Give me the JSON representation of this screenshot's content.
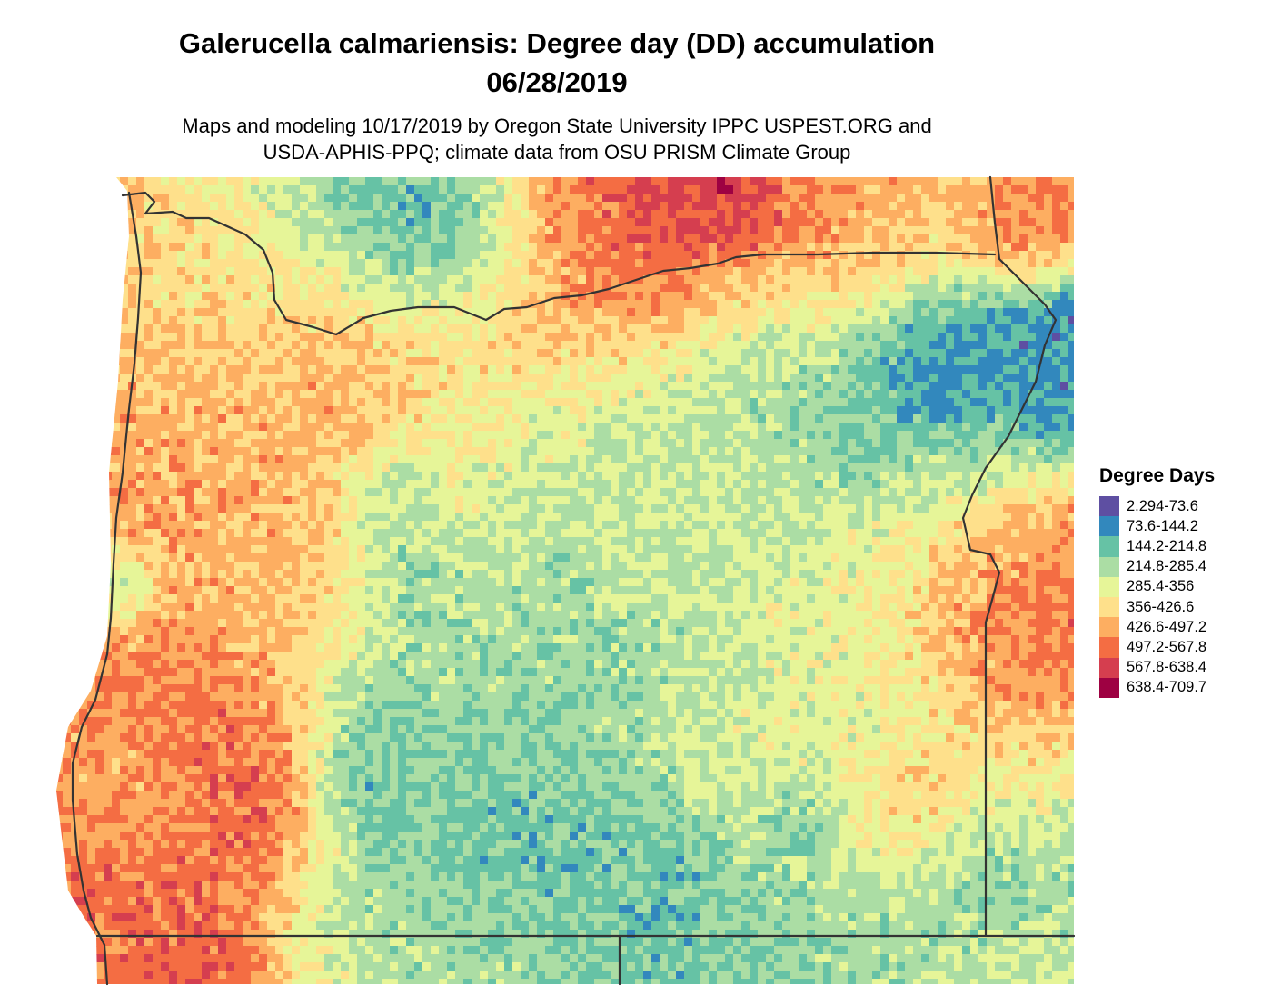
{
  "title": {
    "line1": "Galerucella calmariensis: Degree day (DD) accumulation",
    "line2": "06/28/2019"
  },
  "subtitle": {
    "line1": "Maps and modeling 10/17/2019 by Oregon State University IPPC USPEST.ORG and",
    "line2": "USDA-APHIS-PPQ; climate data from OSU PRISM Climate Group"
  },
  "legend": {
    "title": "Degree Days",
    "items": [
      {
        "label": "2.294-73.6",
        "color": "#5e4fa2"
      },
      {
        "label": "73.6-144.2",
        "color": "#3288bd"
      },
      {
        "label": "144.2-214.8",
        "color": "#66c2a5"
      },
      {
        "label": "214.8-285.4",
        "color": "#abdda4"
      },
      {
        "label": "285.4-356",
        "color": "#e6f598"
      },
      {
        "label": "356-426.6",
        "color": "#fee08b"
      },
      {
        "label": "426.6-497.2",
        "color": "#fdae61"
      },
      {
        "label": "497.2-567.8",
        "color": "#f46d43"
      },
      {
        "label": "567.8-638.4",
        "color": "#d53e4f"
      },
      {
        "label": "638.4-709.7",
        "color": "#9e0142"
      }
    ]
  },
  "boundary_color": "#333333"
}
